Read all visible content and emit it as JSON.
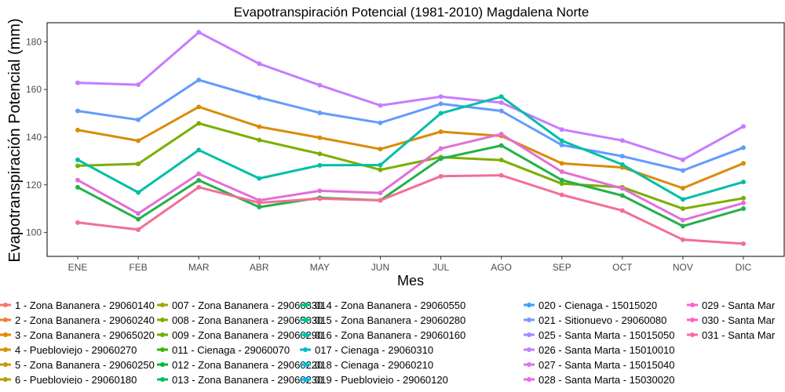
{
  "chart_data": {
    "type": "line",
    "title": "Evapotranspiración Potencial (1981-2010)  Magdalena Norte",
    "xlabel": "Mes",
    "ylabel": "Evapotranspiración Potencial  (mm)",
    "categories": [
      "ENE",
      "FEB",
      "MAR",
      "ABR",
      "MAY",
      "JUN",
      "JUL",
      "AGO",
      "SEP",
      "OCT",
      "NOV",
      "DIC"
    ],
    "ylim": [
      90,
      188
    ],
    "yticks": [
      100,
      120,
      140,
      160,
      180
    ],
    "grid": false,
    "legend_position": "bottom",
    "series": [
      {
        "color": "#c77cff",
        "values": [
          162.8,
          162.0,
          184.0,
          170.8,
          161.8,
          153.3,
          157.0,
          154.5,
          143.2,
          138.6,
          130.5,
          144.5
        ]
      },
      {
        "color": "#619cff",
        "values": [
          151.0,
          147.3,
          164.0,
          156.6,
          150.2,
          146.0,
          154.0,
          151.0,
          136.7,
          132.0,
          126.0,
          135.6
        ]
      },
      {
        "color": "#d98c06",
        "values": [
          143.0,
          138.5,
          152.7,
          144.4,
          139.8,
          135.0,
          142.3,
          140.5,
          129.0,
          127.3,
          118.6,
          129.0
        ]
      },
      {
        "color": "#7cae00",
        "values": [
          128.0,
          128.8,
          145.8,
          138.8,
          133.0,
          126.3,
          131.6,
          130.4,
          120.5,
          119.0,
          110.0,
          114.4
        ]
      },
      {
        "color": "#00bfa5",
        "values": [
          130.5,
          116.8,
          134.6,
          122.7,
          128.2,
          128.3,
          150.0,
          157.0,
          138.5,
          128.5,
          113.9,
          121.2
        ]
      },
      {
        "color": "#e36ed8",
        "values": [
          122.0,
          108.0,
          124.6,
          113.5,
          117.5,
          116.6,
          135.2,
          141.3,
          125.5,
          118.5,
          105.2,
          112.4
        ]
      },
      {
        "color": "#22b14c",
        "values": [
          119.0,
          105.6,
          121.9,
          110.7,
          114.6,
          113.5,
          131.0,
          136.5,
          122.0,
          115.5,
          102.7,
          110.0
        ]
      },
      {
        "color": "#f36f93",
        "values": [
          104.2,
          101.2,
          119.0,
          112.5,
          114.2,
          113.5,
          123.6,
          124.0,
          115.8,
          109.2,
          97.0,
          95.3
        ]
      }
    ],
    "legend": {
      "columns": [
        [
          {
            "label": "1 - Zona Bananera - 29060140",
            "color": "#f8766d"
          },
          {
            "label": "2 - Zona Bananera - 29060240",
            "color": "#f07f3f"
          },
          {
            "label": "3 - Zona Bananera - 29065020",
            "color": "#e48800"
          },
          {
            "label": "4 - Puebloviejo - 29060270",
            "color": "#d89000"
          },
          {
            "label": "5 - Zona Bananera - 29060250",
            "color": "#c99800"
          },
          {
            "label": "6 - Puebloviejo - 29060180",
            "color": "#b79f00"
          }
        ],
        [
          {
            "label": "007 - Zona Bananera - 29060330",
            "color": "#a3a500"
          },
          {
            "label": "008 - Zona Bananera - 29065030",
            "color": "#8bab00"
          },
          {
            "label": "009 - Zona Bananera - 29060290",
            "color": "#6bb100"
          },
          {
            "label": "011 - Cienaga - 29060070",
            "color": "#39b600"
          },
          {
            "label": "012 - Zona Bananera - 29060220",
            "color": "#00ba38"
          },
          {
            "label": "013 - Zona Bananera - 29060230",
            "color": "#00bd62"
          }
        ],
        [
          {
            "label": "014 - Zona Bananera - 29060550",
            "color": "#00bf7d"
          },
          {
            "label": "015 - Zona Bananera - 29060280",
            "color": "#00c094"
          },
          {
            "label": "016 - Zona Bananera - 29060160",
            "color": "#00c0aa"
          },
          {
            "label": "017 - Cienaga - 29060310",
            "color": "#00bfc4"
          },
          {
            "label": "018 - Cienaga - 29060210",
            "color": "#00bcd8"
          },
          {
            "label": "019 - Puebloviejo - 29060120",
            "color": "#00b4ef"
          }
        ],
        [
          {
            "label": "020 - Cienaga - 15015020",
            "color": "#35a2ff"
          },
          {
            "label": "021 - Sitionuevo - 29060080",
            "color": "#7997ff"
          },
          {
            "label": "025 - Santa Marta - 15015050",
            "color": "#9e8bff"
          },
          {
            "label": "026 - Santa Marta - 15010010",
            "color": "#c77cff"
          },
          {
            "label": "027 - Santa Marta - 15015040",
            "color": "#dc71fa"
          },
          {
            "label": "028 - Santa Marta - 15030020",
            "color": "#ec69ef"
          }
        ],
        [
          {
            "label": "029 - Santa Mar",
            "color": "#f962dd"
          },
          {
            "label": "030 - Santa Mar",
            "color": "#ff61c3"
          },
          {
            "label": "031 - Santa Mar",
            "color": "#ff68a1"
          }
        ]
      ]
    }
  }
}
